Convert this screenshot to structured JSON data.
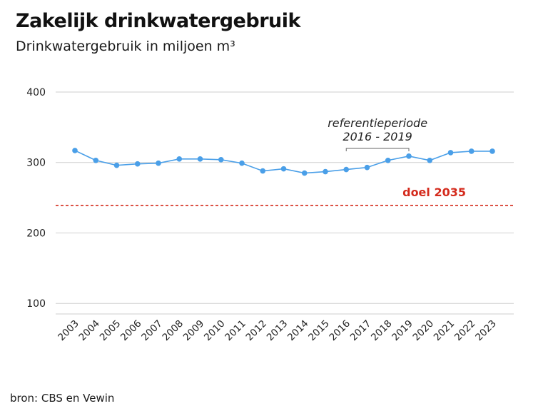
{
  "header": {
    "title": "Zakelijk drinkwatergebruik",
    "subtitle": "Drinkwatergebruik in miljoen m³"
  },
  "footer": {
    "source": "bron: CBS en Vewin"
  },
  "colors": {
    "line": "#4a9fe8",
    "goal": "#d42a1c",
    "grid": "#cfcfcf",
    "bracket": "#666666"
  },
  "chart_data": {
    "type": "line",
    "title": "Zakelijk drinkwatergebruik",
    "ylabel": "Drinkwatergebruik in miljoen m³",
    "xlabel": "",
    "categories": [
      "2003",
      "2004",
      "2005",
      "2006",
      "2007",
      "2008",
      "2009",
      "2010",
      "2011",
      "2012",
      "2013",
      "2014",
      "2015",
      "2016",
      "2017",
      "2018",
      "2019",
      "2020",
      "2021",
      "2022",
      "2023"
    ],
    "series": [
      {
        "name": "Drinkwatergebruik",
        "values": [
          317,
          303,
          296,
          298,
          299,
          305,
          305,
          304,
          299,
          288,
          291,
          285,
          287,
          290,
          293,
          303,
          309,
          303,
          314,
          316,
          316
        ]
      }
    ],
    "ylim": [
      85,
      400
    ],
    "yticks": [
      100,
      200,
      300,
      400
    ],
    "grid": true,
    "reference_line": {
      "label": "doel 2035",
      "value": 239
    },
    "annotation": {
      "line1": "referentieperiode",
      "line2": "2016 - 2019",
      "from": "2016",
      "to": "2019"
    }
  }
}
